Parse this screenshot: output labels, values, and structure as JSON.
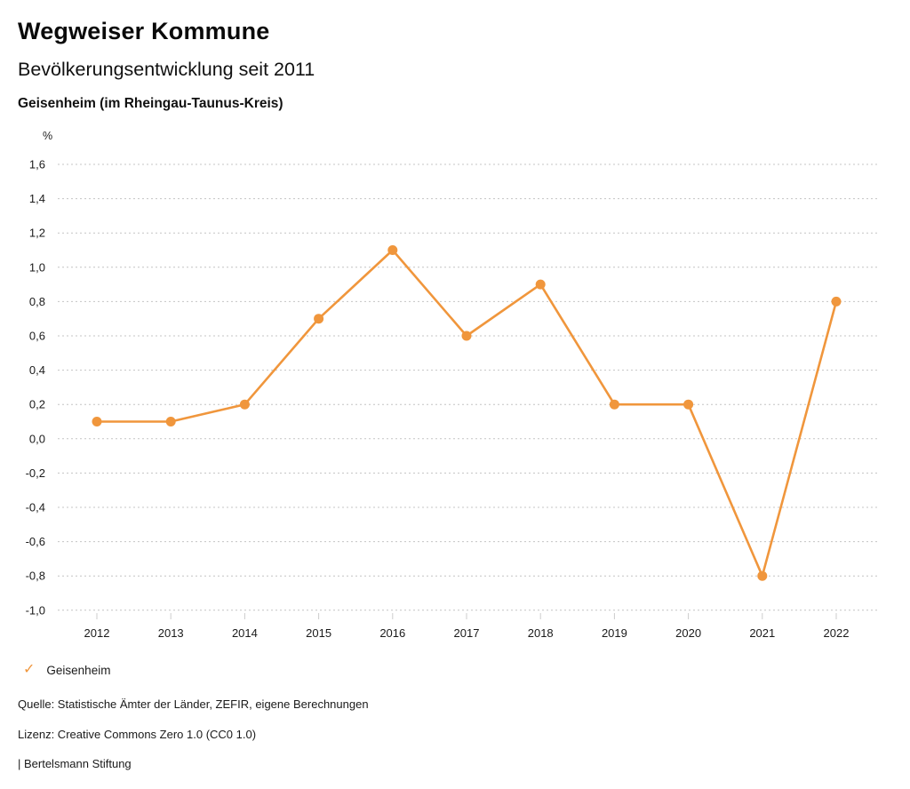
{
  "header": {
    "title": "Wegweiser Kommune",
    "subtitle": "Bevölkerungsentwicklung seit 2011",
    "region": "Geisenheim (im Rheingau-Taunus-Kreis)"
  },
  "chart_data": {
    "type": "line",
    "title": "Bevölkerungsentwicklung seit 2011",
    "unit": "%",
    "x": [
      2012,
      2013,
      2014,
      2015,
      2016,
      2017,
      2018,
      2019,
      2020,
      2021,
      2022
    ],
    "series": [
      {
        "name": "Geisenheim",
        "values": [
          0.1,
          0.1,
          0.2,
          0.7,
          1.1,
          0.6,
          0.9,
          0.2,
          0.2,
          -0.8,
          0.8
        ],
        "color": "#f0963c"
      }
    ],
    "ylim": [
      -1.0,
      1.6
    ],
    "yticks": [
      {
        "v": 1.6,
        "label": "1,6"
      },
      {
        "v": 1.4,
        "label": "1,4"
      },
      {
        "v": 1.2,
        "label": "1,2"
      },
      {
        "v": 1.0,
        "label": "1,0"
      },
      {
        "v": 0.8,
        "label": "0,8"
      },
      {
        "v": 0.6,
        "label": "0,6"
      },
      {
        "v": 0.4,
        "label": "0,4"
      },
      {
        "v": 0.2,
        "label": "0,2"
      },
      {
        "v": 0.0,
        "label": "0,0"
      },
      {
        "v": -0.2,
        "label": "-0,2"
      },
      {
        "v": -0.4,
        "label": "-0,4"
      },
      {
        "v": -0.6,
        "label": "-0,6"
      },
      {
        "v": -0.8,
        "label": "-0,8"
      },
      {
        "v": -1.0,
        "label": "-1,0"
      }
    ],
    "grid": "horizontal-dotted",
    "legend_position": "bottom-left",
    "colors": {
      "line": "#f0963c",
      "gridline": "#c4c4c4",
      "tick": "#cccccc",
      "axis_text": "#1a1a1a"
    }
  },
  "legend": {
    "items": [
      {
        "label": "Geisenheim",
        "check_color": "#f0963c"
      }
    ]
  },
  "footer": {
    "source": "Quelle: Statistische Ämter der Länder, ZEFIR, eigene Berechnungen",
    "license": "Lizenz: Creative Commons Zero 1.0 (CC0 1.0)",
    "attribution": "| Bertelsmann Stiftung"
  }
}
